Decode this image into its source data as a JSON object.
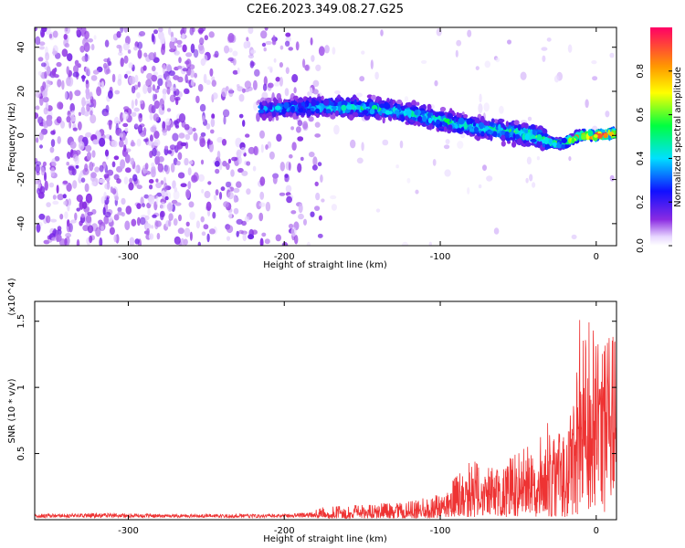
{
  "chart_data": [
    {
      "type": "heatmap",
      "title": "C2E6.2023.349.08.27.G25",
      "xlabel": "Height of straight line (km)",
      "ylabel": "Frequency (Hz)",
      "xlim": [
        -360,
        13
      ],
      "ylim": [
        -50,
        49
      ],
      "x_ticks": [
        -300,
        -200,
        -100,
        0
      ],
      "y_ticks": [
        -40,
        -20,
        0,
        20,
        40
      ],
      "colorbar": {
        "label": "Normalized spectral amplitude",
        "range": [
          0.0,
          1.0
        ],
        "ticks": [
          0.0,
          0.2,
          0.4,
          0.6,
          0.8
        ]
      },
      "signal_track": {
        "x": [
          -215,
          -180,
          -160,
          -140,
          -120,
          -100,
          -80,
          -60,
          -40,
          -30,
          -22,
          -10,
          0,
          13
        ],
        "center_freq_hz": [
          12,
          13,
          13,
          12,
          10,
          7,
          4,
          2,
          0,
          -3,
          -4,
          0,
          0,
          1
        ],
        "amplitude": [
          0.3,
          0.35,
          0.45,
          0.4,
          0.4,
          0.45,
          0.4,
          0.45,
          0.5,
          0.5,
          0.55,
          0.8,
          0.95,
          0.9
        ]
      },
      "noise_region_x": [
        -360,
        -175
      ]
    },
    {
      "type": "line",
      "title": "",
      "xlabel": "Height of straight line (km)",
      "ylabel": "SNR (10 * v/v)",
      "y_multiplier": "(x10^4)",
      "xlim": [
        -360,
        13
      ],
      "ylim": [
        0,
        1.65
      ],
      "x_ticks": [
        -300,
        -200,
        -100,
        0
      ],
      "y_ticks": [
        0.5,
        1.0,
        1.5
      ],
      "series": [
        {
          "color": "#ee3333",
          "x": [
            -360,
            -320,
            -280,
            -240,
            -200,
            -180,
            -160,
            -140,
            -120,
            -100,
            -90,
            -80,
            -70,
            -60,
            -50,
            -40,
            -30,
            -25,
            -20,
            -15,
            -12,
            -10,
            -8,
            -5,
            0,
            5,
            10,
            13
          ],
          "y": [
            0.03,
            0.04,
            0.03,
            0.03,
            0.03,
            0.05,
            0.06,
            0.07,
            0.08,
            0.12,
            0.25,
            0.35,
            0.3,
            0.32,
            0.4,
            0.45,
            0.6,
            0.55,
            0.5,
            0.7,
            1.0,
            1.45,
            1.3,
            1.2,
            1.1,
            1.05,
            1.15,
            1.1
          ]
        }
      ]
    }
  ]
}
